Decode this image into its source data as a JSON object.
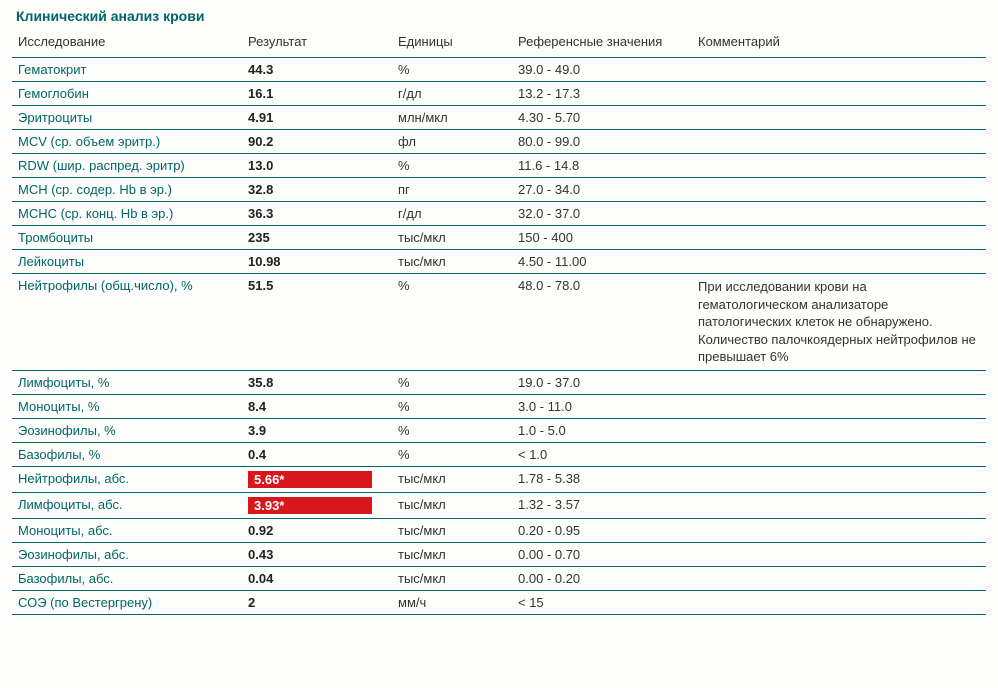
{
  "title": "Клинический анализ крови",
  "columns": {
    "name": "Исследование",
    "result": "Результат",
    "units": "Единицы",
    "ref": "Референсные значения",
    "comment": "Комментарий"
  },
  "colors": {
    "heading": "#006666",
    "rule": "#006666",
    "flag_bg": "#d8171d",
    "flag_fg": "#ffffff",
    "text": "#333333",
    "background": "#fdfdfb"
  },
  "rows": [
    {
      "name": "Гематокрит",
      "result": "44.3",
      "units": "%",
      "ref": "39.0 - 49.0",
      "comment": "",
      "flag": false
    },
    {
      "name": "Гемоглобин",
      "result": "16.1",
      "units": "г/дл",
      "ref": "13.2 - 17.3",
      "comment": "",
      "flag": false
    },
    {
      "name": "Эритроциты",
      "result": "4.91",
      "units": "млн/мкл",
      "ref": "4.30 - 5.70",
      "comment": "",
      "flag": false
    },
    {
      "name": "MCV (ср. объем эритр.)",
      "result": "90.2",
      "units": "фл",
      "ref": "80.0 - 99.0",
      "comment": "",
      "flag": false
    },
    {
      "name": "RDW (шир. распред. эритр)",
      "result": "13.0",
      "units": "%",
      "ref": "11.6 - 14.8",
      "comment": "",
      "flag": false
    },
    {
      "name": "MCH (ср. содер. Hb в эр.)",
      "result": "32.8",
      "units": "пг",
      "ref": "27.0 - 34.0",
      "comment": "",
      "flag": false
    },
    {
      "name": "MCHC (ср. конц. Hb в эр.)",
      "result": "36.3",
      "units": "г/дл",
      "ref": "32.0 - 37.0",
      "comment": "",
      "flag": false
    },
    {
      "name": "Тромбоциты",
      "result": "235",
      "units": "тыс/мкл",
      "ref": "150 - 400",
      "comment": "",
      "flag": false
    },
    {
      "name": "Лейкоциты",
      "result": "10.98",
      "units": "тыс/мкл",
      "ref": "4.50 - 11.00",
      "comment": "",
      "flag": false
    },
    {
      "name": "Нейтрофилы (общ.число), %",
      "result": "51.5",
      "units": "%",
      "ref": "48.0 - 78.0",
      "comment": "При исследовании крови на гематологическом анализаторе патологических клеток не обнаружено. Количество палочкоядерных нейтрофилов не превышает 6%",
      "flag": false
    },
    {
      "name": "Лимфоциты, %",
      "result": "35.8",
      "units": "%",
      "ref": "19.0 - 37.0",
      "comment": "",
      "flag": false
    },
    {
      "name": "Моноциты, %",
      "result": "8.4",
      "units": "%",
      "ref": "3.0 - 11.0",
      "comment": "",
      "flag": false
    },
    {
      "name": "Эозинофилы, %",
      "result": "3.9",
      "units": "%",
      "ref": "1.0 - 5.0",
      "comment": "",
      "flag": false
    },
    {
      "name": "Базофилы, %",
      "result": "0.4",
      "units": "%",
      "ref": "< 1.0",
      "comment": "",
      "flag": false
    },
    {
      "name": "Нейтрофилы, абс.",
      "result": "5.66*",
      "units": "тыс/мкл",
      "ref": "1.78 - 5.38",
      "comment": "",
      "flag": true
    },
    {
      "name": "Лимфоциты, абс.",
      "result": "3.93*",
      "units": "тыс/мкл",
      "ref": "1.32 - 3.57",
      "comment": "",
      "flag": true
    },
    {
      "name": "Моноциты, абс.",
      "result": "0.92",
      "units": "тыс/мкл",
      "ref": "0.20 - 0.95",
      "comment": "",
      "flag": false
    },
    {
      "name": "Эозинофилы, абс.",
      "result": "0.43",
      "units": "тыс/мкл",
      "ref": "0.00 - 0.70",
      "comment": "",
      "flag": false
    },
    {
      "name": "Базофилы, абс.",
      "result": "0.04",
      "units": "тыс/мкл",
      "ref": "0.00 - 0.20",
      "comment": "",
      "flag": false
    },
    {
      "name": "СОЭ (по Вестергрену)",
      "result": "2",
      "units": "мм/ч",
      "ref": "< 15",
      "comment": "",
      "flag": false
    }
  ]
}
